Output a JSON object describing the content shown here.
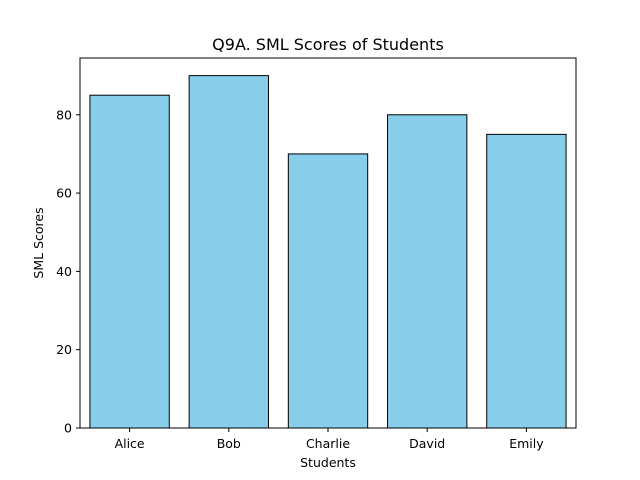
{
  "chart_data": {
    "type": "bar",
    "title": "Q9A. SML Scores of Students",
    "xlabel": "Students",
    "ylabel": "SML Scores",
    "categories": [
      "Alice",
      "Bob",
      "Charlie",
      "David",
      "Emily"
    ],
    "values": [
      85,
      90,
      70,
      80,
      75
    ],
    "ylim": [
      0,
      94.5
    ],
    "yticks": [
      0,
      20,
      40,
      60,
      80
    ],
    "bar_color": "#87ceeb",
    "edge_color": "#000000",
    "grid": false,
    "legend": "none"
  }
}
